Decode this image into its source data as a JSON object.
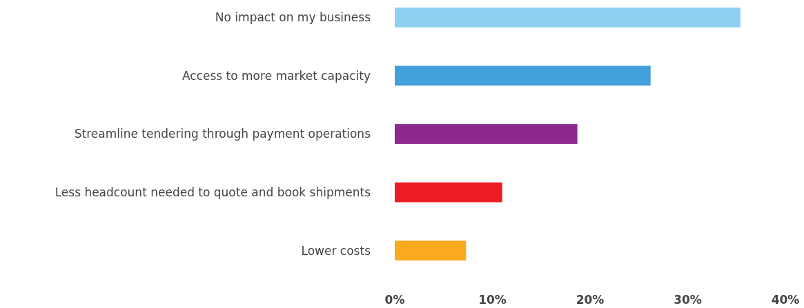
{
  "chart_data": {
    "type": "bar",
    "orientation": "horizontal",
    "categories": [
      "No impact on my business",
      "Access to more market capacity",
      "Streamline tendering through payment operations",
      "Less headcount needed to quote and book shipments",
      "Lower costs"
    ],
    "values": [
      35.4,
      26.2,
      18.7,
      11,
      7.3
    ],
    "colors": [
      "#8ecff2",
      "#44a0db",
      "#8e288f",
      "#ec1c24",
      "#f9aa1e"
    ],
    "xlim": [
      0,
      40
    ],
    "xticks": [
      {
        "value": 0,
        "label": "0%"
      },
      {
        "value": 10,
        "label": "10%"
      },
      {
        "value": 20,
        "label": "20%"
      },
      {
        "value": 30,
        "label": "30%"
      },
      {
        "value": 40,
        "label": "40%"
      }
    ],
    "grid": false
  }
}
